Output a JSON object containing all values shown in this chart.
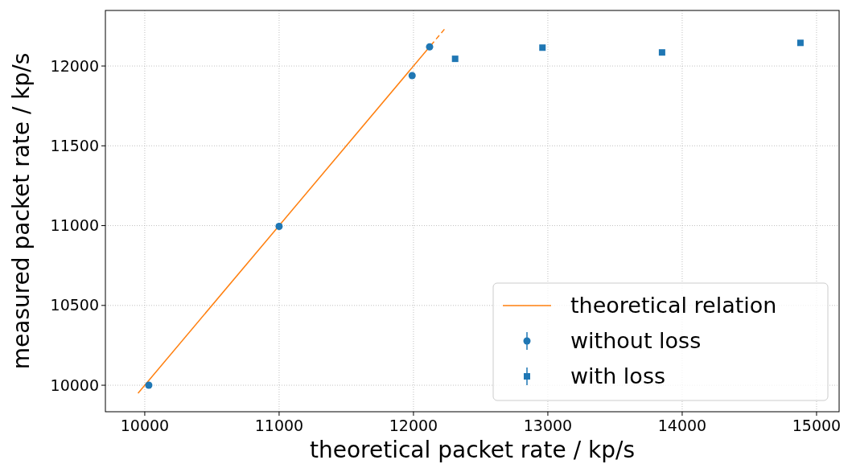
{
  "chart_data": {
    "type": "scatter",
    "xlabel": "theoretical packet rate / kp/s",
    "ylabel": "measured packet rate / kp/s",
    "xlim": [
      9707,
      15168
    ],
    "ylim": [
      9834,
      12348
    ],
    "xticks": [
      10000,
      11000,
      12000,
      13000,
      14000,
      15000
    ],
    "yticks": [
      10000,
      10500,
      11000,
      11500,
      12000
    ],
    "grid": true,
    "legend": "bottom right",
    "series": [
      {
        "name": "theoretical relation",
        "type": "line",
        "color": "#ff7f0e",
        "line_style": "solid",
        "x": [
          9950,
          12130
        ],
        "values": [
          9950,
          12130
        ]
      },
      {
        "type": "line",
        "color": "#ff7f0e",
        "line_style": "dashed",
        "x": [
          12130,
          12240
        ],
        "values": [
          12130,
          12240
        ]
      },
      {
        "name": "without loss",
        "marker": "circle",
        "color": "#1f77b4",
        "x": [
          10030,
          11000,
          11990,
          12120
        ],
        "values": [
          10000,
          10995,
          11940,
          12120
        ]
      },
      {
        "name": "with loss",
        "marker": "square",
        "color": "#1f77b4",
        "x": [
          12310,
          12960,
          13850,
          14880
        ],
        "values": [
          12045,
          12115,
          12085,
          12145
        ]
      }
    ]
  }
}
